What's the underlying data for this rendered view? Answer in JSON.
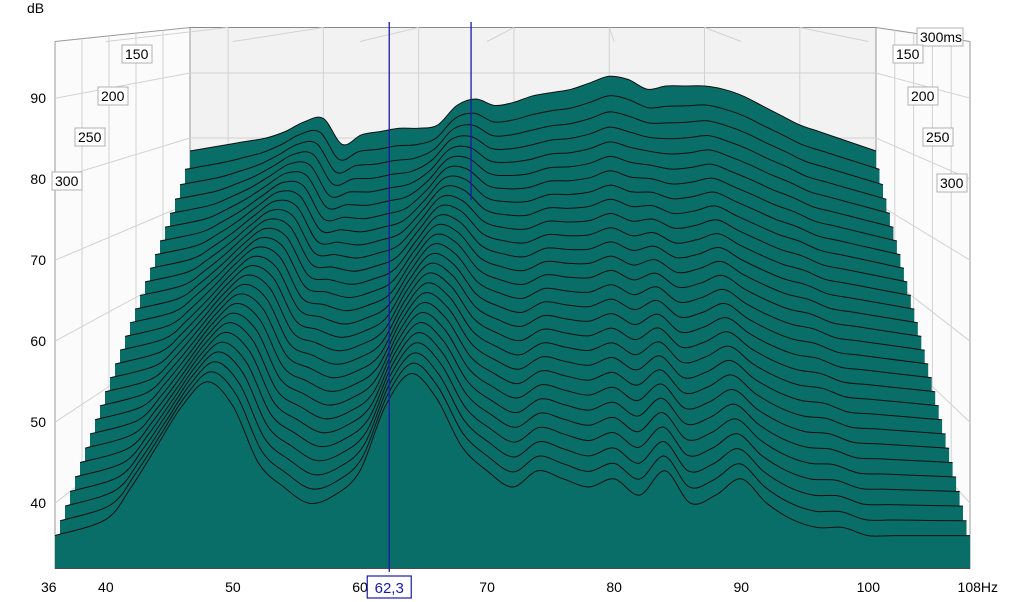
{
  "chart_data": {
    "type": "waterfall",
    "title": "",
    "ylabel": "dB",
    "xunit": "Hz",
    "x_tick_labels": [
      "36",
      "40",
      "50",
      "60",
      "70",
      "80",
      "90",
      "100",
      "108Hz"
    ],
    "y_tick_labels": [
      "40",
      "50",
      "60",
      "70",
      "80",
      "90"
    ],
    "time_labels_left": [
      "150",
      "200",
      "250",
      "300"
    ],
    "time_labels_right": [
      "300ms",
      "150",
      "200",
      "250",
      "300"
    ],
    "xlim": [
      36,
      108
    ],
    "ylim": [
      32,
      97
    ],
    "time_range_ms": [
      0,
      300
    ],
    "cursor": {
      "frequency_label": "62,3",
      "frequency": 62.3
    },
    "marker_frequency": 65.5,
    "slice_count": 28,
    "colors": {
      "fill": "#0a6e68",
      "outline": "#101010",
      "cursor": "#1a1aa8",
      "grid": "#d2d2d2",
      "wall": "#f2f2f2"
    },
    "series": [
      {
        "name": "",
        "time_ms": 0,
        "x": [
          36,
          40,
          42,
          44,
          46,
          48,
          50,
          52,
          54,
          56,
          58,
          60,
          62,
          64,
          66,
          68,
          70,
          72,
          74,
          76,
          78,
          80,
          82,
          84,
          86,
          88,
          90,
          92,
          94,
          96,
          98,
          100,
          102,
          104,
          106,
          108
        ],
        "y": [
          78,
          79,
          79.5,
          80,
          81,
          82.5,
          83,
          79,
          80.5,
          81,
          81.5,
          81.5,
          82,
          85,
          86,
          85,
          85.5,
          86.5,
          87,
          87.5,
          88.5,
          89.5,
          89,
          87.5,
          88,
          88,
          88,
          87.5,
          86.5,
          85,
          83.5,
          82,
          81,
          80,
          79,
          78
        ]
      },
      {
        "name": "",
        "time_ms": 300,
        "x": [
          36,
          40,
          42,
          44,
          46,
          48,
          50,
          52,
          54,
          56,
          58,
          60,
          62,
          64,
          66,
          68,
          70,
          72,
          74,
          76,
          78,
          80,
          82,
          84,
          86,
          88,
          90,
          92,
          94,
          96,
          98,
          100,
          102,
          104,
          106,
          108
        ],
        "y": [
          36,
          38,
          42,
          47,
          52,
          55,
          52,
          45,
          42,
          40,
          41,
          44,
          52,
          56,
          53,
          47,
          44,
          42,
          44,
          43,
          42,
          43,
          41,
          44,
          40,
          41,
          43,
          40,
          38,
          37,
          37,
          36,
          36,
          36,
          36,
          36
        ]
      }
    ]
  }
}
